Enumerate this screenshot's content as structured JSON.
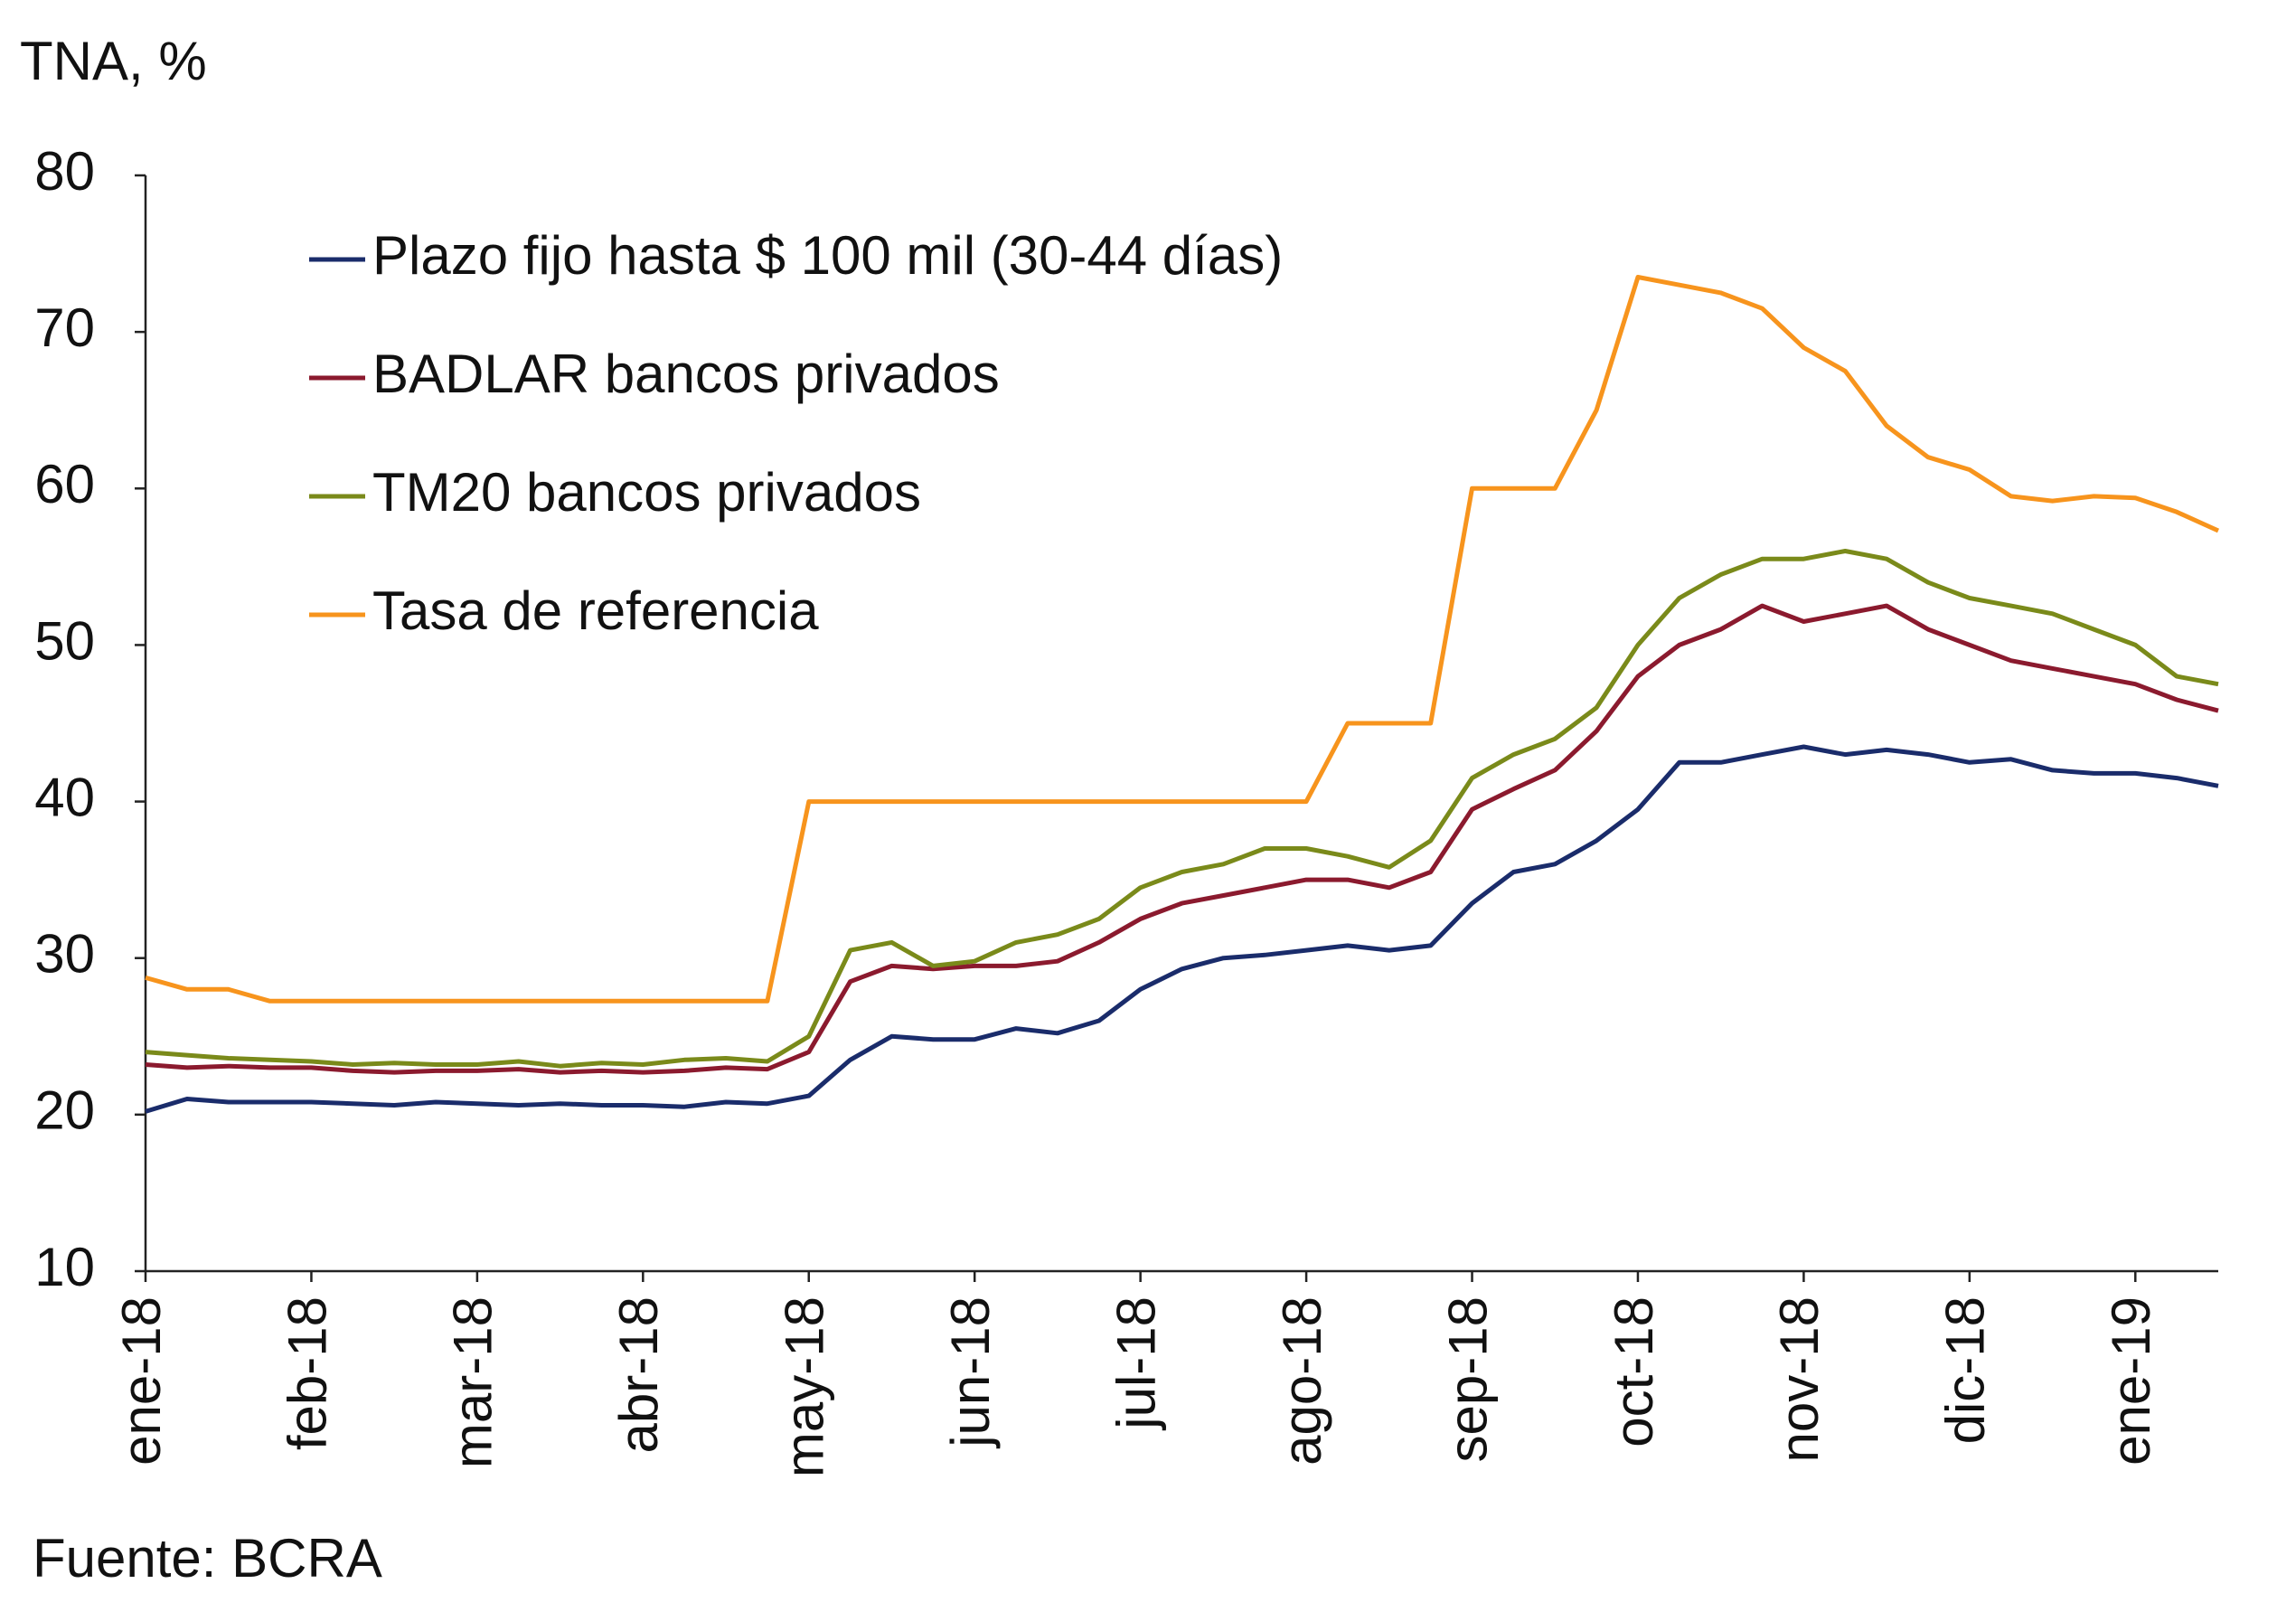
{
  "chart_data": {
    "type": "line",
    "y_label": "TNA, %",
    "source": "Fuente: BCRA",
    "categories": [
      "ene-18",
      null,
      null,
      null,
      "feb-18",
      null,
      null,
      null,
      "mar-18",
      null,
      null,
      null,
      "abr-18",
      null,
      null,
      null,
      "may-18",
      null,
      null,
      null,
      "jun-18",
      null,
      null,
      null,
      "jul-18",
      null,
      null,
      null,
      "ago-18",
      null,
      null,
      null,
      "sep-18",
      null,
      null,
      null,
      "oct-18",
      null,
      null,
      null,
      "nov-18",
      null,
      null,
      null,
      "dic-18",
      null,
      null,
      null,
      "ene-19",
      null,
      null
    ],
    "series": [
      {
        "name": "Plazo fijo hasta $ 100 mil (30-44 días)",
        "color": "#1a2c6b",
        "values": [
          20.2,
          21,
          20.8,
          20.8,
          20.8,
          20.7,
          20.6,
          20.8,
          20.7,
          20.6,
          20.7,
          20.6,
          20.6,
          20.5,
          20.8,
          20.7,
          21.2,
          23.5,
          25,
          24.8,
          24.8,
          25.5,
          25.2,
          26,
          28,
          29.3,
          30,
          30.2,
          30.5,
          30.8,
          30.5,
          30.8,
          33.5,
          35.5,
          36,
          37.5,
          39.5,
          42.5,
          42.5,
          43,
          43.5,
          43,
          43.3,
          43,
          42.5,
          42.7,
          42,
          41.8,
          41.8,
          41.5,
          41
        ]
      },
      {
        "name": "BADLAR bancos privados",
        "color": "#8b1a2e",
        "values": [
          23.2,
          23.0,
          23.1,
          23.0,
          23.0,
          22.8,
          22.7,
          22.8,
          22.8,
          22.9,
          22.7,
          22.8,
          22.7,
          22.8,
          23,
          22.9,
          24,
          28.5,
          29.5,
          29.3,
          29.5,
          29.5,
          29.8,
          31,
          32.5,
          33.5,
          34,
          34.5,
          35,
          35,
          34.5,
          35.5,
          39.5,
          40.8,
          42,
          44.5,
          48,
          50,
          51,
          52.5,
          51.5,
          52,
          52.5,
          51,
          50,
          49,
          48.5,
          48,
          47.5,
          46.5,
          45.8
        ]
      },
      {
        "name": "TM20 bancos privados",
        "color": "#7a8a1a",
        "values": [
          24,
          23.8,
          23.6,
          23.5,
          23.4,
          23.2,
          23.3,
          23.2,
          23.2,
          23.4,
          23.1,
          23.3,
          23.2,
          23.5,
          23.6,
          23.4,
          25,
          30.5,
          31,
          29.5,
          29.8,
          31,
          31.5,
          32.5,
          34.5,
          35.5,
          36,
          37,
          37,
          36.5,
          35.8,
          37.5,
          41.5,
          43,
          44,
          46,
          50,
          53,
          54.5,
          55.5,
          55.5,
          56,
          55.5,
          54,
          53,
          52.5,
          52,
          51,
          50,
          48,
          47.5
        ]
      },
      {
        "name": "Tasa de referencia",
        "color": "#f7941d",
        "values": [
          28.75,
          28,
          28,
          27.25,
          27.25,
          27.25,
          27.25,
          27.25,
          27.25,
          27.25,
          27.25,
          27.25,
          27.25,
          27.25,
          27.25,
          27.25,
          40,
          40,
          40,
          40,
          40,
          40,
          40,
          40,
          40,
          40,
          40,
          40,
          40,
          45,
          45,
          45,
          60,
          60,
          60,
          65,
          73.5,
          73,
          72.5,
          71.5,
          69,
          67.5,
          64,
          62,
          61.2,
          59.5,
          59.2,
          59.5,
          59.4,
          58.5,
          57.3
        ]
      }
    ],
    "ylim": [
      10,
      80
    ],
    "yticks": [
      10,
      20,
      30,
      40,
      50,
      60,
      70,
      80
    ],
    "grid": false,
    "legend": "upper-left"
  }
}
